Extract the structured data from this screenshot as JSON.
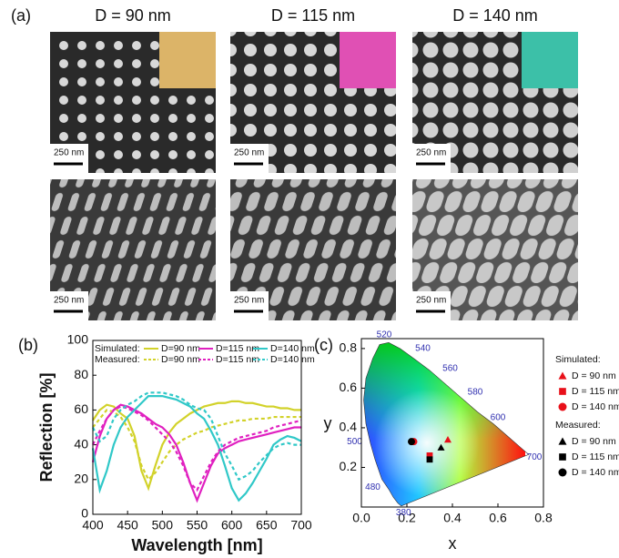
{
  "panel_a": {
    "label": "(a)",
    "columns": [
      "D = 90 nm",
      "D = 115 nm",
      "D = 140 nm"
    ],
    "scale_bar": "250 nm"
  },
  "chart_data": [
    {
      "type": "line",
      "label": "(b)",
      "xlabel": "Wavelength [nm]",
      "ylabel": "Reflection [%]",
      "xlim": [
        400,
        700
      ],
      "ylim": [
        0,
        100
      ],
      "xticks": [
        400,
        450,
        500,
        550,
        600,
        650,
        700
      ],
      "yticks": [
        0,
        20,
        40,
        60,
        80,
        100
      ],
      "legend_groups": [
        "Simulated:",
        "Measured:"
      ],
      "x": [
        400,
        410,
        420,
        430,
        440,
        450,
        460,
        470,
        480,
        490,
        500,
        510,
        520,
        530,
        540,
        550,
        560,
        570,
        580,
        590,
        600,
        610,
        620,
        630,
        640,
        650,
        660,
        670,
        680,
        690,
        700
      ],
      "series": [
        {
          "name": "D=90 nm",
          "color": "#d2d22a",
          "dash": false,
          "values": [
            54,
            60,
            63,
            62,
            58,
            55,
            45,
            25,
            15,
            28,
            40,
            47,
            52,
            55,
            58,
            60,
            62,
            63,
            64,
            64,
            65,
            65,
            64,
            64,
            63,
            62,
            62,
            61,
            61,
            60,
            60
          ]
        },
        {
          "name": "D=115 nm",
          "color": "#e020c0",
          "dash": false,
          "values": [
            30,
            45,
            55,
            60,
            63,
            62,
            60,
            58,
            55,
            52,
            50,
            46,
            40,
            30,
            18,
            8,
            18,
            28,
            35,
            38,
            40,
            42,
            43,
            44,
            45,
            46,
            47,
            48,
            49,
            50,
            50
          ]
        },
        {
          "name": "D=140 nm",
          "color": "#30c8c8",
          "dash": false,
          "values": [
            38,
            14,
            25,
            40,
            50,
            56,
            60,
            64,
            68,
            68,
            68,
            67,
            66,
            64,
            62,
            58,
            55,
            48,
            40,
            28,
            15,
            8,
            12,
            18,
            25,
            32,
            40,
            43,
            45,
            44,
            42
          ]
        },
        {
          "name": "D=90 nm",
          "color": "#d2d22a",
          "dash": true,
          "values": [
            50,
            55,
            60,
            59,
            56,
            50,
            42,
            28,
            20,
            24,
            30,
            36,
            40,
            43,
            45,
            47,
            48,
            50,
            51,
            52,
            53,
            54,
            54,
            55,
            55,
            55,
            56,
            56,
            56,
            56,
            56
          ]
        },
        {
          "name": "D=115 nm",
          "color": "#e020c0",
          "dash": true,
          "values": [
            40,
            48,
            55,
            60,
            62,
            61,
            59,
            57,
            54,
            50,
            46,
            42,
            36,
            28,
            18,
            14,
            22,
            30,
            36,
            40,
            42,
            44,
            45,
            46,
            47,
            48,
            50,
            51,
            52,
            53,
            54
          ]
        },
        {
          "name": "D=140 nm",
          "color": "#30c8c8",
          "dash": true,
          "values": [
            50,
            42,
            45,
            55,
            60,
            63,
            65,
            68,
            70,
            70,
            70,
            69,
            68,
            66,
            63,
            61,
            60,
            55,
            45,
            35,
            28,
            20,
            22,
            25,
            30,
            34,
            38,
            40,
            41,
            40,
            40
          ]
        }
      ]
    },
    {
      "type": "scatter",
      "label": "(c)",
      "xlabel": "x",
      "ylabel": "y",
      "xlim": [
        0,
        0.8
      ],
      "ylim": [
        0,
        0.85
      ],
      "xticks": [
        {
          "value": 0,
          "label": "0.0"
        },
        0.2,
        0.4,
        0.6,
        0.8
      ],
      "yticks": [
        0.2,
        0.4,
        0.6,
        0.8
      ],
      "locus_labels": [
        380,
        480,
        500,
        520,
        540,
        560,
        580,
        600,
        700
      ],
      "legend_groups": [
        "Simulated:",
        "Measured:"
      ],
      "series": [
        {
          "name": "D = 90 nm",
          "color": "#e8101a",
          "marker": "triangle",
          "x": [
            0.38
          ],
          "values": [
            0.34
          ]
        },
        {
          "name": "D = 115 nm",
          "color": "#e8101a",
          "marker": "square",
          "x": [
            0.3
          ],
          "values": [
            0.26
          ]
        },
        {
          "name": "D = 140 nm",
          "color": "#e8101a",
          "marker": "circle",
          "x": [
            0.23
          ],
          "values": [
            0.33
          ]
        },
        {
          "name": "D = 90 nm",
          "color": "#000000",
          "marker": "triangle",
          "x": [
            0.35
          ],
          "values": [
            0.3
          ]
        },
        {
          "name": "D = 115 nm",
          "color": "#000000",
          "marker": "square",
          "x": [
            0.3
          ],
          "values": [
            0.24
          ]
        },
        {
          "name": "D = 140 nm",
          "color": "#000000",
          "marker": "circle",
          "x": [
            0.22
          ],
          "values": [
            0.33
          ]
        }
      ]
    }
  ]
}
